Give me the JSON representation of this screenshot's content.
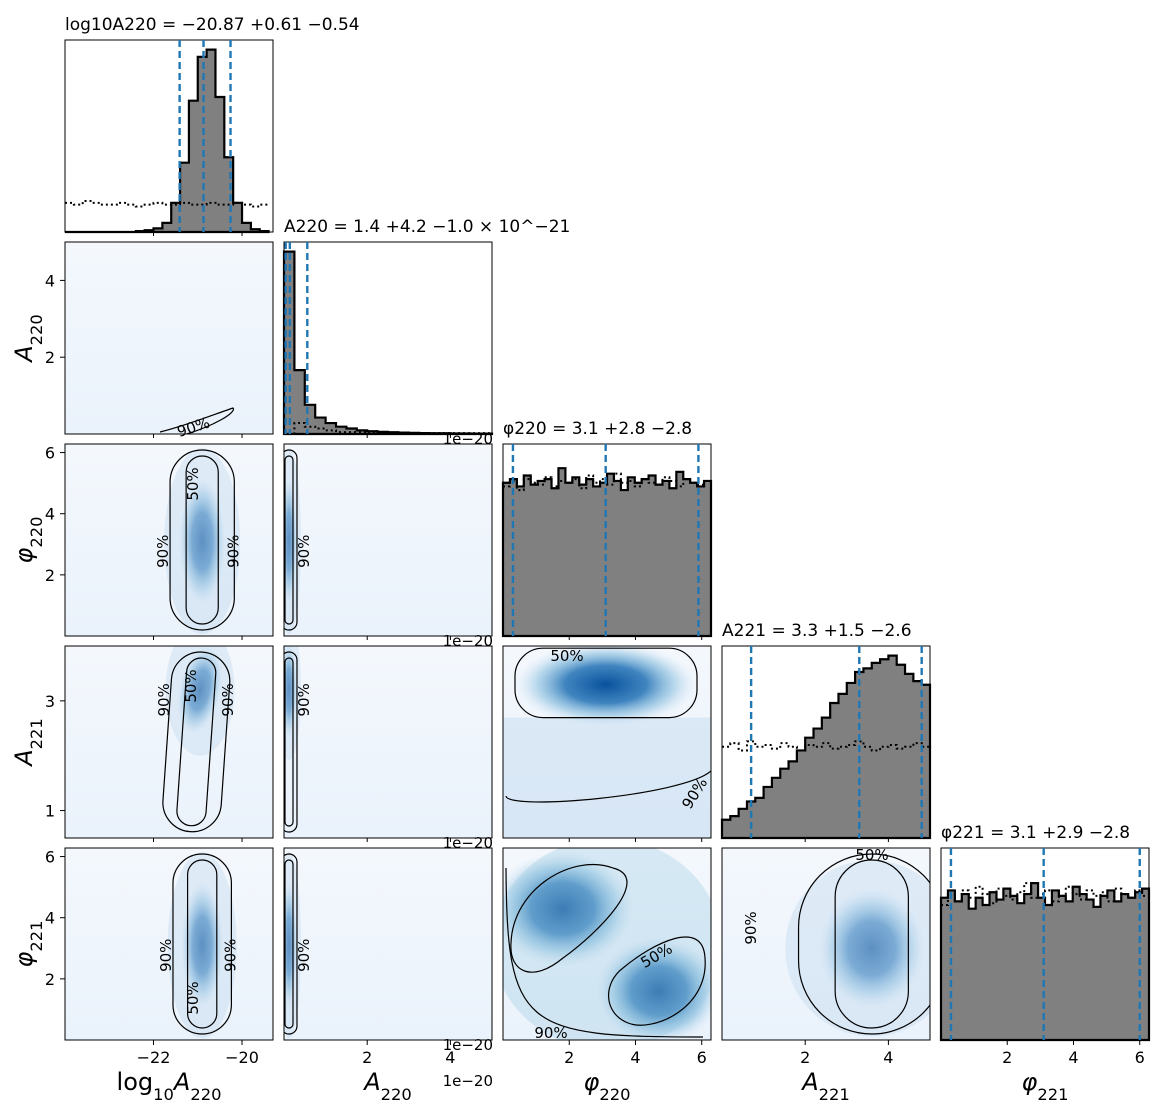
{
  "colors": {
    "hist_fill": "#808080",
    "hist_edge": "#000000",
    "quantile_line": "#1f77b4",
    "density_low": "#f2f7fd",
    "density_high": "#08519c",
    "contour": "#000000"
  },
  "chart_data": {
    "type": "corner",
    "parameters": [
      {
        "id": "log10A220",
        "axis_label": "log10A220",
        "title": "log10A220 = −20.87 +0.61 −0.54",
        "range": [
          -24,
          -19.3
        ],
        "ticks": [
          -22,
          -20
        ],
        "tick_labels": [
          "−22",
          "−20"
        ],
        "median": -20.87,
        "quantiles": [
          -21.41,
          -20.87,
          -20.26
        ],
        "offset_label": ""
      },
      {
        "id": "A220",
        "axis_label": "A220",
        "title": "A220 = 1.4 +4.2 −1.0 × 10^−21",
        "range": [
          0,
          5e-20
        ],
        "ticks": [
          2e-20,
          4e-20
        ],
        "tick_labels": [
          "2",
          "4"
        ],
        "median": 1.4e-21,
        "quantiles": [
          4e-22,
          1.4e-21,
          5.6e-21
        ],
        "offset_label": "1e−20"
      },
      {
        "id": "phi220",
        "axis_label": "φ220",
        "title": "φ220 = 3.1 +2.8 −2.8",
        "range": [
          0,
          6.28
        ],
        "ticks": [
          2,
          4,
          6
        ],
        "tick_labels": [
          "2",
          "4",
          "6"
        ],
        "median": 3.1,
        "quantiles": [
          0.3,
          3.1,
          5.9
        ],
        "offset_label": ""
      },
      {
        "id": "A221",
        "axis_label": "A221",
        "title": "A221 = 3.3 +1.5 −2.6",
        "range": [
          0,
          5
        ],
        "ticks": [
          2,
          4
        ],
        "tick_labels": [
          "2",
          "4"
        ],
        "y_ticks": [
          1,
          3
        ],
        "y_tick_labels": [
          "1",
          "3"
        ],
        "y_range": [
          0.5,
          4
        ],
        "median": 3.3,
        "quantiles": [
          0.7,
          3.3,
          4.8
        ],
        "offset_label": ""
      },
      {
        "id": "phi221",
        "axis_label": "φ221",
        "title": "φ221 = 3.1 +2.9 −2.8",
        "range": [
          0,
          6.28
        ],
        "ticks": [
          2,
          4,
          6
        ],
        "tick_labels": [
          "2",
          "4",
          "6"
        ],
        "median": 3.1,
        "quantiles": [
          0.3,
          3.1,
          6.0
        ],
        "offset_label": ""
      }
    ],
    "y_axis": {
      "A220": {
        "ticks": [
          2e-20,
          4e-20
        ],
        "tick_labels": [
          "2",
          "4"
        ],
        "range": [
          0,
          5e-20
        ]
      },
      "phi220": {
        "ticks": [
          2,
          4,
          6
        ],
        "tick_labels": [
          "2",
          "4",
          "6"
        ],
        "range": [
          0,
          6.28
        ]
      },
      "A221": {
        "ticks": [
          1,
          3
        ],
        "tick_labels": [
          "1",
          "3"
        ],
        "range": [
          0.5,
          4
        ]
      },
      "phi221": {
        "ticks": [
          2,
          4,
          6
        ],
        "tick_labels": [
          "2",
          "4",
          "6"
        ],
        "range": [
          0,
          6.28
        ]
      }
    },
    "histograms": {
      "log10A220": {
        "bins": [
          -24,
          -23.8,
          -23.6,
          -23.4,
          -23.2,
          -23.0,
          -22.8,
          -22.6,
          -22.4,
          -22.2,
          -22.0,
          -21.8,
          -21.6,
          -21.4,
          -21.2,
          -21.0,
          -20.8,
          -20.6,
          -20.4,
          -20.2,
          -20.0,
          -19.8,
          -19.6,
          -19.4
        ],
        "posterior": [
          0.0,
          0.0,
          0.0,
          0.0,
          0.0,
          0.0,
          0.0,
          0.0,
          0.005,
          0.01,
          0.02,
          0.05,
          0.16,
          0.38,
          0.72,
          0.96,
          1.0,
          0.74,
          0.41,
          0.16,
          0.05,
          0.015,
          0.005
        ],
        "prior": [
          0.16,
          0.15,
          0.17,
          0.16,
          0.15,
          0.15,
          0.16,
          0.15,
          0.14,
          0.15,
          0.16,
          0.15,
          0.15,
          0.16,
          0.15,
          0.15,
          0.16,
          0.15,
          0.15,
          0.16,
          0.15,
          0.14,
          0.15
        ]
      },
      "A220": {
        "posterior": [
          1.0,
          0.35,
          0.16,
          0.09,
          0.06,
          0.04,
          0.03,
          0.02,
          0.015,
          0.012,
          0.01,
          0.008,
          0.006,
          0.005,
          0.004,
          0.004,
          0.003,
          0.003,
          0.002,
          0.002
        ],
        "prior": [
          0.0,
          0.06,
          0.04,
          0.03,
          0.02,
          0.01,
          0.01,
          0.01,
          0.005,
          0.005,
          0.005,
          0.005,
          0.005,
          0.005,
          0.005,
          0.005,
          0.005,
          0.005,
          0.005,
          0.005
        ]
      },
      "phi220": {
        "posterior": [
          0.84,
          0.86,
          0.82,
          0.88,
          0.83,
          0.85,
          0.86,
          0.81,
          0.92,
          0.84,
          0.87,
          0.83,
          0.86,
          0.82,
          0.84,
          0.89,
          0.85,
          0.8,
          0.87,
          0.84,
          0.86,
          0.88,
          0.83,
          0.85,
          0.81,
          0.9,
          0.86,
          0.84,
          0.82,
          0.85
        ],
        "prior": [
          0.82,
          0.85,
          0.8,
          0.86,
          0.84,
          0.83,
          0.87,
          0.82,
          0.85,
          0.84,
          0.86,
          0.81,
          0.88,
          0.84,
          0.86,
          0.83,
          0.89,
          0.84,
          0.85,
          0.82,
          0.86,
          0.84,
          0.83,
          0.87,
          0.85,
          0.82,
          0.86,
          0.84,
          0.83,
          0.85
        ]
      },
      "A221": {
        "posterior": [
          0.1,
          0.12,
          0.16,
          0.2,
          0.22,
          0.28,
          0.33,
          0.38,
          0.42,
          0.48,
          0.55,
          0.6,
          0.66,
          0.74,
          0.79,
          0.85,
          0.91,
          0.93,
          0.96,
          0.98,
          1.0,
          0.95,
          0.9,
          0.86,
          0.84
        ],
        "prior": [
          0.5,
          0.52,
          0.48,
          0.53,
          0.5,
          0.51,
          0.49,
          0.52,
          0.5,
          0.48,
          0.51,
          0.5,
          0.52,
          0.49,
          0.5,
          0.51,
          0.53,
          0.5,
          0.48,
          0.5,
          0.51,
          0.49,
          0.5,
          0.52,
          0.5
        ]
      },
      "phi221": {
        "posterior": [
          0.78,
          0.82,
          0.76,
          0.8,
          0.72,
          0.78,
          0.74,
          0.81,
          0.77,
          0.83,
          0.79,
          0.75,
          0.8,
          0.86,
          0.78,
          0.74,
          0.82,
          0.79,
          0.76,
          0.84,
          0.8,
          0.77,
          0.73,
          0.79,
          0.82,
          0.76,
          0.8,
          0.78,
          0.81,
          0.83
        ],
        "prior": [
          0.74,
          0.8,
          0.76,
          0.82,
          0.78,
          0.84,
          0.8,
          0.75,
          0.83,
          0.79,
          0.77,
          0.81,
          0.86,
          0.78,
          0.8,
          0.82,
          0.76,
          0.79,
          0.84,
          0.8,
          0.77,
          0.82,
          0.79,
          0.81,
          0.76,
          0.83,
          0.8,
          0.78,
          0.82,
          0.79
        ]
      }
    },
    "contour_labels": [
      "50%",
      "90%"
    ],
    "density_peaks": [
      {
        "row": "A220",
        "col": "log10A220",
        "x": -20.5,
        "y": 3e-21,
        "sx": 0.5,
        "sy": 4e-21,
        "shape": "diag"
      },
      {
        "row": "phi220",
        "col": "log10A220",
        "x": -20.9,
        "y": 3.1,
        "sx": 0.33,
        "sy": 1.9,
        "shape": "vertical"
      },
      {
        "row": "phi220",
        "col": "A220",
        "x": 1.2e-21,
        "y": 3.1,
        "sx": 8e-22,
        "sy": 1.9,
        "shape": "vertical"
      },
      {
        "row": "A221",
        "col": "log10A220",
        "x": -20.95,
        "y": 3.2,
        "sx": 0.3,
        "sy": 0.75,
        "shape": "tilt"
      },
      {
        "row": "A221",
        "col": "A220",
        "x": 1.2e-21,
        "y": 3.2,
        "sx": 6e-22,
        "sy": 0.8,
        "shape": "vertical"
      },
      {
        "row": "A221",
        "col": "phi220",
        "x": 3.1,
        "y": 3.3,
        "sx": 2.2,
        "sy": 0.55,
        "shape": "horizontal"
      },
      {
        "row": "phi221",
        "col": "log10A220",
        "x": -20.9,
        "y": 3.1,
        "sx": 0.3,
        "sy": 1.9,
        "shape": "vertical"
      },
      {
        "row": "phi221",
        "col": "A220",
        "x": 1.2e-21,
        "y": 3.1,
        "sx": 6e-22,
        "sy": 1.9,
        "shape": "vertical"
      },
      {
        "row": "phi221",
        "col": "phi220",
        "x": 1.8,
        "y": 4.2,
        "sx": 1.1,
        "sy": 1.1,
        "shape": "blob2"
      },
      {
        "row": "phi221",
        "col": "A221",
        "x": 3.6,
        "y": 3.0,
        "sx": 0.8,
        "sy": 1.8,
        "shape": "vertical"
      }
    ]
  }
}
